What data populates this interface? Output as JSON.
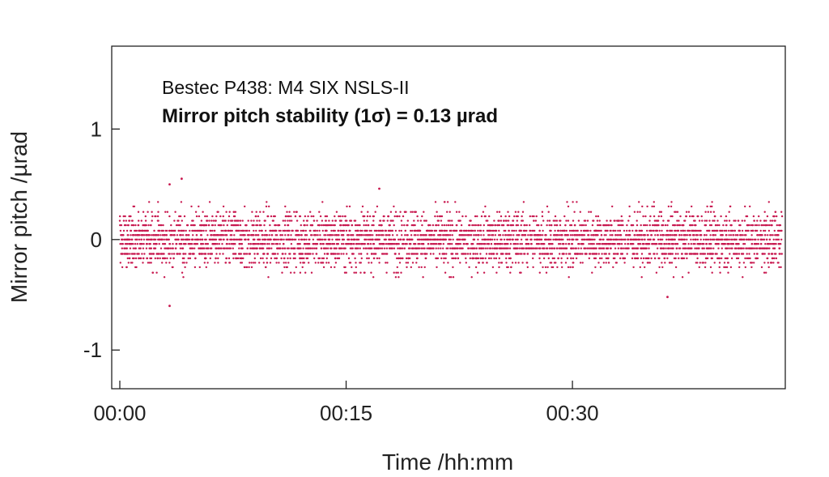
{
  "chart_data": {
    "type": "scatter",
    "title": "",
    "xlabel": "Time /hh:mm",
    "ylabel": "Mirror pitch /µrad",
    "xlim": [
      0,
      44
    ],
    "ylim": [
      -1.35,
      1.75
    ],
    "x_units": "minutes",
    "xticks": [
      0,
      15,
      30
    ],
    "xtick_labels": [
      "00:00",
      "00:15",
      "00:30"
    ],
    "yticks": [
      -1,
      0,
      1
    ],
    "ytick_labels": [
      "-1",
      "0",
      "1"
    ],
    "grid": false,
    "legend": "none",
    "annotations": [
      "Bestec P438: M4 SIX NSLS-II",
      "Mirror pitch stability (1σ) = 0.13 µrad"
    ],
    "series": [
      {
        "color": "#c8184f",
        "quantized_levels": [
          -0.34,
          -0.3,
          -0.25,
          -0.21,
          -0.17,
          -0.13,
          -0.08,
          -0.04,
          0,
          0.04,
          0.08,
          0.13,
          0.17,
          0.21,
          0.25,
          0.3,
          0.34
        ],
        "std_dev": 0.13,
        "mean": 0,
        "time_range": [
          0,
          43.9
        ],
        "outliers": [
          {
            "x": 3.3,
            "y": 0.5
          },
          {
            "x": 4.1,
            "y": 0.55
          },
          {
            "x": 3.3,
            "y": -0.6
          },
          {
            "x": 17.2,
            "y": 0.46
          },
          {
            "x": 36.3,
            "y": -0.52
          }
        ]
      }
    ]
  }
}
